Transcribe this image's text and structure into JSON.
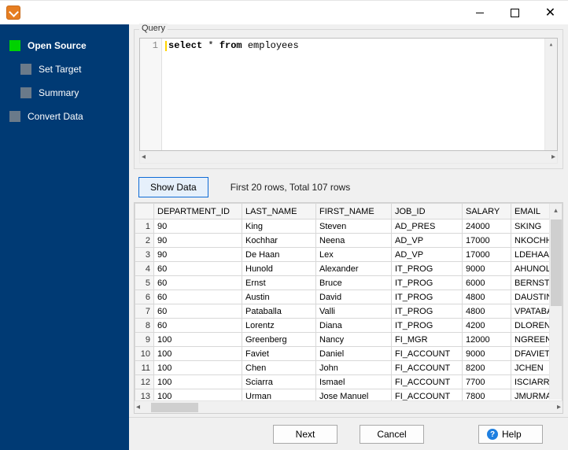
{
  "nav": {
    "items": [
      {
        "label": "Open Source",
        "active": true,
        "indent": false
      },
      {
        "label": "Set Target",
        "active": false,
        "indent": true
      },
      {
        "label": "Summary",
        "active": false,
        "indent": true
      },
      {
        "label": "Convert Data",
        "active": false,
        "indent": false
      }
    ]
  },
  "query": {
    "group_label": "Query",
    "line_number": "1",
    "segments": [
      {
        "text": "select",
        "kw": true
      },
      {
        "text": " * "
      },
      {
        "text": "from",
        "kw": true
      },
      {
        "text": " employees"
      }
    ]
  },
  "actions": {
    "show_data": "Show Data",
    "rows_info": "First 20 rows, Total 107 rows",
    "next": "Next",
    "cancel": "Cancel",
    "help": "Help"
  },
  "table": {
    "columns": [
      "DEPARTMENT_ID",
      "LAST_NAME",
      "FIRST_NAME",
      "JOB_ID",
      "SALARY",
      "EMAIL"
    ],
    "rows": [
      [
        "90",
        "King",
        "Steven",
        "AD_PRES",
        "24000",
        "SKING"
      ],
      [
        "90",
        "Kochhar",
        "Neena",
        "AD_VP",
        "17000",
        "NKOCHH"
      ],
      [
        "90",
        "De Haan",
        "Lex",
        "AD_VP",
        "17000",
        "LDEHAAN"
      ],
      [
        "60",
        "Hunold",
        "Alexander",
        "IT_PROG",
        "9000",
        "AHUNOL"
      ],
      [
        "60",
        "Ernst",
        "Bruce",
        "IT_PROG",
        "6000",
        "BERNST"
      ],
      [
        "60",
        "Austin",
        "David",
        "IT_PROG",
        "4800",
        "DAUSTIN"
      ],
      [
        "60",
        "Pataballa",
        "Valli",
        "IT_PROG",
        "4800",
        "VPATABAL"
      ],
      [
        "60",
        "Lorentz",
        "Diana",
        "IT_PROG",
        "4200",
        "DLORENT"
      ],
      [
        "100",
        "Greenberg",
        "Nancy",
        "FI_MGR",
        "12000",
        "NGREENE"
      ],
      [
        "100",
        "Faviet",
        "Daniel",
        "FI_ACCOUNT",
        "9000",
        "DFAVIET"
      ],
      [
        "100",
        "Chen",
        "John",
        "FI_ACCOUNT",
        "8200",
        "JCHEN"
      ],
      [
        "100",
        "Sciarra",
        "Ismael",
        "FI_ACCOUNT",
        "7700",
        "ISCIARRA"
      ],
      [
        "100",
        "Urman",
        "Jose Manuel",
        "FI_ACCOUNT",
        "7800",
        "JMURMA"
      ]
    ]
  },
  "colors": {
    "sidebar_bg": "#003a74",
    "active_box": "#00d200",
    "inactive_box": "#6a7a8a",
    "accent_btn_border": "#0e6bd6",
    "accent_btn_bg": "#e6f0fb"
  }
}
